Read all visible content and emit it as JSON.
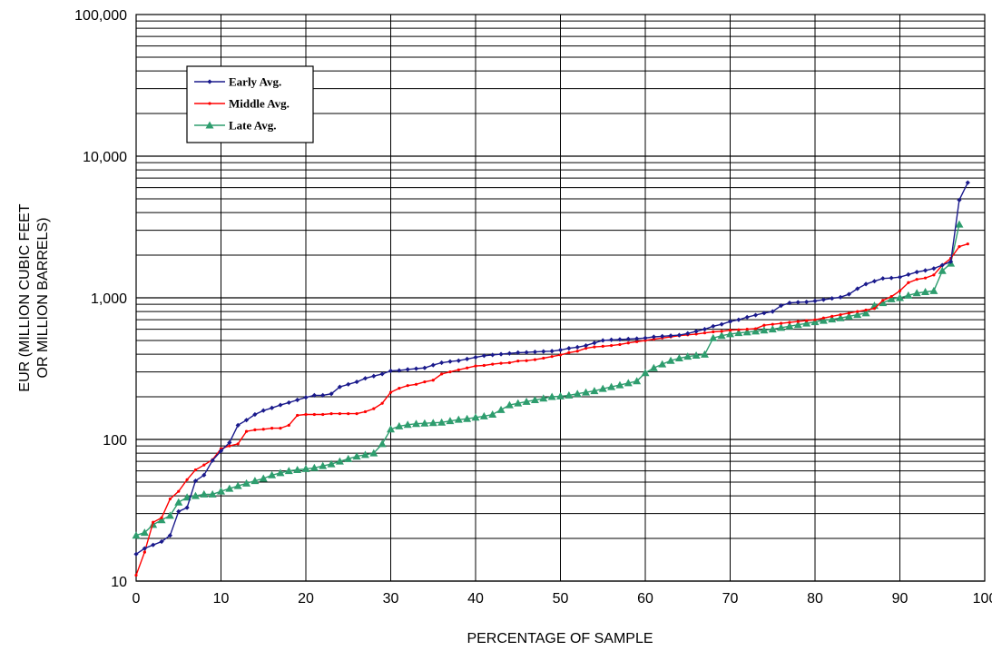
{
  "chart_data": {
    "type": "line",
    "title": "",
    "xlabel": "PERCENTAGE OF SAMPLE",
    "ylabel_lines": [
      "EUR (MILLION CUBIC FEET",
      "OR MILLION BARRELS)"
    ],
    "xlim": [
      0,
      100
    ],
    "ylim": [
      10,
      100000
    ],
    "yscale": "log",
    "x_ticks": [
      "0",
      "10",
      "20",
      "30",
      "40",
      "50",
      "60",
      "70",
      "80",
      "90",
      "100"
    ],
    "y_ticks": [
      {
        "value": 10,
        "label": "10"
      },
      {
        "value": 100,
        "label": "100"
      },
      {
        "value": 1000,
        "label": "1,000"
      },
      {
        "value": 10000,
        "label": "10,000"
      },
      {
        "value": 100000,
        "label": "100,000"
      }
    ],
    "grid": true,
    "legend_position": "top-left",
    "series": [
      {
        "name": "Early Avg.",
        "color": "#1a1a8c",
        "marker": "diamond",
        "points": [
          [
            0,
            15.5
          ],
          [
            1,
            17
          ],
          [
            2,
            18
          ],
          [
            3,
            19
          ],
          [
            4,
            21
          ],
          [
            5,
            31
          ],
          [
            6,
            33
          ],
          [
            7,
            51
          ],
          [
            8,
            56
          ],
          [
            9,
            71
          ],
          [
            10,
            83
          ],
          [
            11,
            95
          ],
          [
            12,
            126
          ],
          [
            13,
            137
          ],
          [
            14,
            150
          ],
          [
            15,
            160
          ],
          [
            16,
            167
          ],
          [
            17,
            175
          ],
          [
            18,
            182
          ],
          [
            19,
            190
          ],
          [
            20,
            198
          ],
          [
            21,
            205
          ],
          [
            22,
            205
          ],
          [
            23,
            210
          ],
          [
            24,
            235
          ],
          [
            25,
            245
          ],
          [
            26,
            255
          ],
          [
            27,
            270
          ],
          [
            28,
            280
          ],
          [
            29,
            290
          ],
          [
            30,
            305
          ],
          [
            31,
            307
          ],
          [
            32,
            312
          ],
          [
            33,
            316
          ],
          [
            34,
            320
          ],
          [
            35,
            335
          ],
          [
            36,
            348
          ],
          [
            37,
            355
          ],
          [
            38,
            360
          ],
          [
            39,
            370
          ],
          [
            40,
            380
          ],
          [
            41,
            390
          ],
          [
            42,
            395
          ],
          [
            43,
            400
          ],
          [
            44,
            405
          ],
          [
            45,
            410
          ],
          [
            46,
            412
          ],
          [
            47,
            415
          ],
          [
            48,
            418
          ],
          [
            49,
            420
          ],
          [
            50,
            428
          ],
          [
            51,
            440
          ],
          [
            52,
            448
          ],
          [
            53,
            460
          ],
          [
            54,
            480
          ],
          [
            55,
            500
          ],
          [
            56,
            505
          ],
          [
            57,
            508
          ],
          [
            58,
            512
          ],
          [
            59,
            515
          ],
          [
            60,
            520
          ],
          [
            61,
            530
          ],
          [
            62,
            535
          ],
          [
            63,
            540
          ],
          [
            64,
            545
          ],
          [
            65,
            560
          ],
          [
            66,
            580
          ],
          [
            67,
            600
          ],
          [
            68,
            630
          ],
          [
            69,
            650
          ],
          [
            70,
            680
          ],
          [
            71,
            700
          ],
          [
            72,
            730
          ],
          [
            73,
            755
          ],
          [
            74,
            780
          ],
          [
            75,
            800
          ],
          [
            76,
            880
          ],
          [
            77,
            920
          ],
          [
            78,
            930
          ],
          [
            79,
            935
          ],
          [
            80,
            950
          ],
          [
            81,
            970
          ],
          [
            82,
            990
          ],
          [
            83,
            1010
          ],
          [
            84,
            1060
          ],
          [
            85,
            1160
          ],
          [
            86,
            1250
          ],
          [
            87,
            1310
          ],
          [
            88,
            1370
          ],
          [
            89,
            1380
          ],
          [
            90,
            1400
          ],
          [
            91,
            1460
          ],
          [
            92,
            1520
          ],
          [
            93,
            1560
          ],
          [
            94,
            1610
          ],
          [
            95,
            1700
          ],
          [
            96,
            1800
          ],
          [
            97,
            4900
          ],
          [
            98,
            6500
          ]
        ]
      },
      {
        "name": "Middle Avg.",
        "color": "#ff0000",
        "marker": "dot",
        "points": [
          [
            0,
            11
          ],
          [
            1,
            16
          ],
          [
            2,
            26
          ],
          [
            3,
            28
          ],
          [
            4,
            38
          ],
          [
            5,
            43
          ],
          [
            6,
            52
          ],
          [
            7,
            61
          ],
          [
            8,
            66
          ],
          [
            9,
            72
          ],
          [
            10,
            86
          ],
          [
            11,
            90
          ],
          [
            12,
            93
          ],
          [
            13,
            114
          ],
          [
            14,
            117
          ],
          [
            15,
            118
          ],
          [
            16,
            120
          ],
          [
            17,
            120
          ],
          [
            18,
            126
          ],
          [
            19,
            148
          ],
          [
            20,
            150
          ],
          [
            21,
            150
          ],
          [
            22,
            150
          ],
          [
            23,
            152
          ],
          [
            24,
            152
          ],
          [
            25,
            152
          ],
          [
            26,
            152
          ],
          [
            27,
            157
          ],
          [
            28,
            165
          ],
          [
            29,
            180
          ],
          [
            30,
            215
          ],
          [
            31,
            230
          ],
          [
            32,
            240
          ],
          [
            33,
            245
          ],
          [
            34,
            255
          ],
          [
            35,
            262
          ],
          [
            36,
            290
          ],
          [
            37,
            300
          ],
          [
            38,
            310
          ],
          [
            39,
            320
          ],
          [
            40,
            330
          ],
          [
            41,
            333
          ],
          [
            42,
            340
          ],
          [
            43,
            345
          ],
          [
            44,
            348
          ],
          [
            45,
            358
          ],
          [
            46,
            360
          ],
          [
            47,
            366
          ],
          [
            48,
            375
          ],
          [
            49,
            385
          ],
          [
            50,
            395
          ],
          [
            51,
            410
          ],
          [
            52,
            420
          ],
          [
            53,
            440
          ],
          [
            54,
            450
          ],
          [
            55,
            455
          ],
          [
            56,
            460
          ],
          [
            57,
            468
          ],
          [
            58,
            480
          ],
          [
            59,
            490
          ],
          [
            60,
            500
          ],
          [
            61,
            510
          ],
          [
            62,
            520
          ],
          [
            63,
            530
          ],
          [
            64,
            540
          ],
          [
            65,
            548
          ],
          [
            66,
            555
          ],
          [
            67,
            565
          ],
          [
            68,
            575
          ],
          [
            69,
            580
          ],
          [
            70,
            590
          ],
          [
            71,
            595
          ],
          [
            72,
            600
          ],
          [
            73,
            605
          ],
          [
            74,
            640
          ],
          [
            75,
            650
          ],
          [
            76,
            660
          ],
          [
            77,
            670
          ],
          [
            78,
            680
          ],
          [
            79,
            690
          ],
          [
            80,
            700
          ],
          [
            81,
            720
          ],
          [
            82,
            740
          ],
          [
            83,
            760
          ],
          [
            84,
            780
          ],
          [
            85,
            800
          ],
          [
            86,
            820
          ],
          [
            87,
            840
          ],
          [
            88,
            960
          ],
          [
            89,
            1020
          ],
          [
            90,
            1120
          ],
          [
            91,
            1280
          ],
          [
            92,
            1350
          ],
          [
            93,
            1380
          ],
          [
            94,
            1450
          ],
          [
            95,
            1700
          ],
          [
            96,
            1900
          ],
          [
            97,
            2300
          ],
          [
            98,
            2400
          ]
        ]
      },
      {
        "name": "Late Avg.",
        "color": "#2e9d6e",
        "marker": "triangle",
        "points": [
          [
            0,
            21
          ],
          [
            1,
            22
          ],
          [
            2,
            25
          ],
          [
            3,
            27
          ],
          [
            4,
            29
          ],
          [
            5,
            36
          ],
          [
            6,
            39
          ],
          [
            7,
            40
          ],
          [
            8,
            41
          ],
          [
            9,
            41
          ],
          [
            10,
            43
          ],
          [
            11,
            45
          ],
          [
            12,
            47
          ],
          [
            13,
            49
          ],
          [
            14,
            51
          ],
          [
            15,
            53
          ],
          [
            16,
            56
          ],
          [
            17,
            58
          ],
          [
            18,
            60
          ],
          [
            19,
            61
          ],
          [
            20,
            62
          ],
          [
            21,
            63
          ],
          [
            22,
            65
          ],
          [
            23,
            67
          ],
          [
            24,
            70
          ],
          [
            25,
            73
          ],
          [
            26,
            76
          ],
          [
            27,
            78
          ],
          [
            28,
            80
          ],
          [
            29,
            93
          ],
          [
            30,
            118
          ],
          [
            31,
            124
          ],
          [
            32,
            127
          ],
          [
            33,
            129
          ],
          [
            34,
            130
          ],
          [
            35,
            131
          ],
          [
            36,
            132
          ],
          [
            37,
            135
          ],
          [
            38,
            138
          ],
          [
            39,
            140
          ],
          [
            40,
            143
          ],
          [
            41,
            146
          ],
          [
            42,
            150
          ],
          [
            43,
            162
          ],
          [
            44,
            175
          ],
          [
            45,
            180
          ],
          [
            46,
            185
          ],
          [
            47,
            190
          ],
          [
            48,
            195
          ],
          [
            49,
            200
          ],
          [
            50,
            202
          ],
          [
            51,
            205
          ],
          [
            52,
            210
          ],
          [
            53,
            215
          ],
          [
            54,
            220
          ],
          [
            55,
            228
          ],
          [
            56,
            235
          ],
          [
            57,
            242
          ],
          [
            58,
            250
          ],
          [
            59,
            258
          ],
          [
            60,
            295
          ],
          [
            61,
            320
          ],
          [
            62,
            340
          ],
          [
            63,
            360
          ],
          [
            64,
            375
          ],
          [
            65,
            385
          ],
          [
            66,
            392
          ],
          [
            67,
            398
          ],
          [
            68,
            520
          ],
          [
            69,
            540
          ],
          [
            70,
            555
          ],
          [
            71,
            565
          ],
          [
            72,
            572
          ],
          [
            73,
            580
          ],
          [
            74,
            590
          ],
          [
            75,
            600
          ],
          [
            76,
            615
          ],
          [
            77,
            630
          ],
          [
            78,
            645
          ],
          [
            79,
            660
          ],
          [
            80,
            675
          ],
          [
            81,
            690
          ],
          [
            82,
            705
          ],
          [
            83,
            720
          ],
          [
            84,
            740
          ],
          [
            85,
            760
          ],
          [
            86,
            780
          ],
          [
            87,
            880
          ],
          [
            88,
            920
          ],
          [
            89,
            980
          ],
          [
            90,
            1000
          ],
          [
            91,
            1040
          ],
          [
            92,
            1080
          ],
          [
            93,
            1100
          ],
          [
            94,
            1120
          ],
          [
            95,
            1550
          ],
          [
            96,
            1750
          ],
          [
            97,
            3300
          ]
        ]
      }
    ]
  }
}
